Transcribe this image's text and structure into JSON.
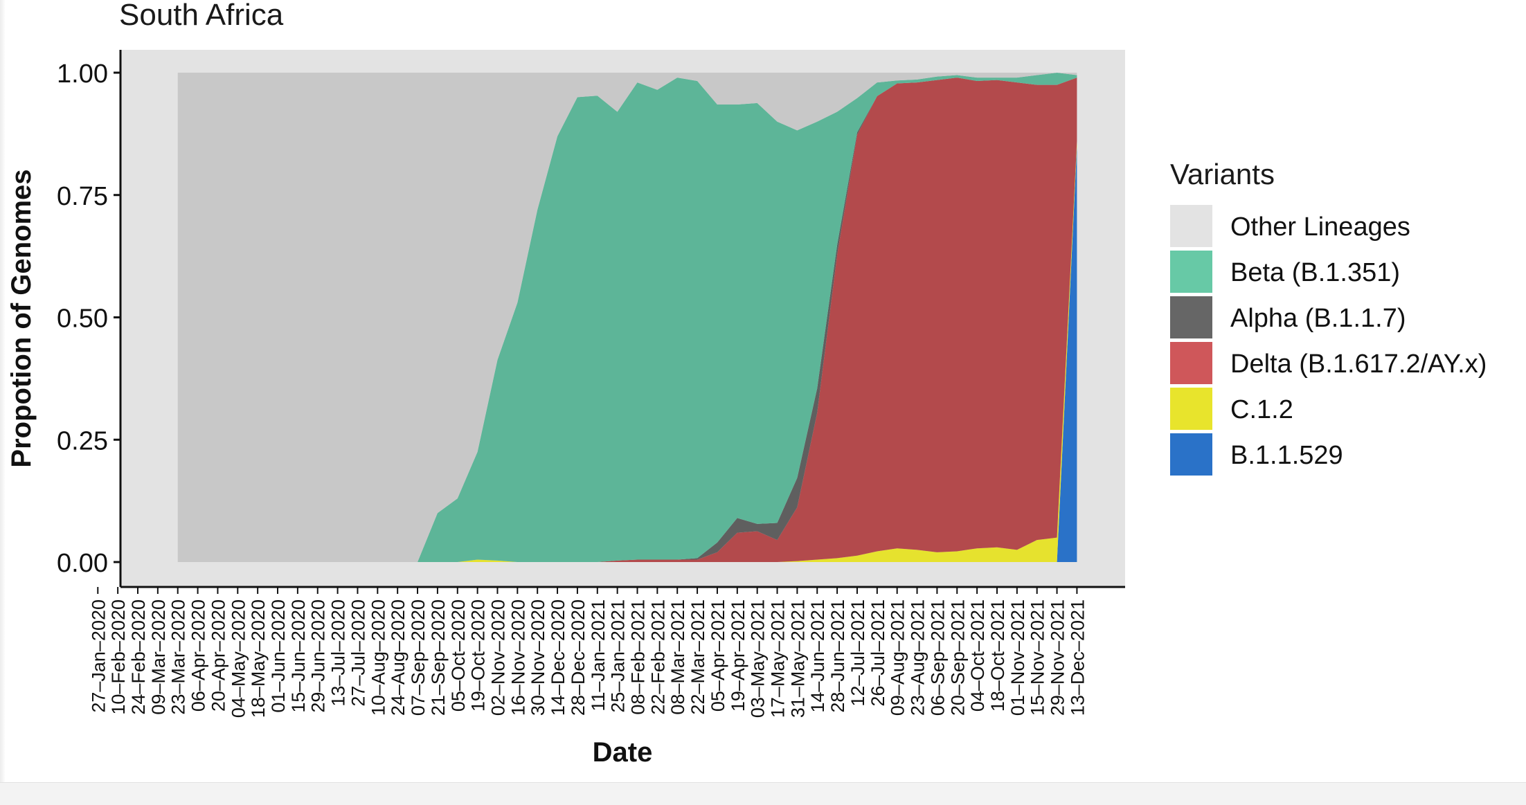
{
  "chart_data": {
    "type": "area",
    "title": "South Africa",
    "xlabel": "Date",
    "ylabel": "Propotion of Genomes",
    "ylim": [
      0,
      1
    ],
    "yticks": [
      "0.00",
      "0.25",
      "0.50",
      "0.75",
      "1.00"
    ],
    "grid": false,
    "legend_position": "right",
    "legend_title": "Variants",
    "x_ticks": [
      "27–Jan–2020",
      "10–Feb–2020",
      "24–Feb–2020",
      "09–Mar–2020",
      "23–Mar–2020",
      "06–Apr–2020",
      "20–Apr–2020",
      "04–May–2020",
      "18–May–2020",
      "01–Jun–2020",
      "15–Jun–2020",
      "29–Jun–2020",
      "13–Jul–2020",
      "27–Jul–2020",
      "10–Aug–2020",
      "24–Aug–2020",
      "07–Sep–2020",
      "21–Sep–2020",
      "05–Oct–2020",
      "19–Oct–2020",
      "02–Nov–2020",
      "16–Nov–2020",
      "30–Nov–2020",
      "14–Dec–2020",
      "28–Dec–2020",
      "11–Jan–2021",
      "25–Jan–2021",
      "08–Feb–2021",
      "22–Feb–2021",
      "08–Mar–2021",
      "22–Mar–2021",
      "05–Apr–2021",
      "19–Apr–2021",
      "03–May–2021",
      "17–May–2021",
      "31–May–2021",
      "14–Jun–2021",
      "28–Jun–2021",
      "12–Jul–2021",
      "26–Jul–2021",
      "09–Aug–2021",
      "23–Aug–2021",
      "06–Sep–2021",
      "20–Sep–2021",
      "04–Oct–2021",
      "18–Oct–2021",
      "01–Nov–2021",
      "15–Nov–2021",
      "29–Nov–2021",
      "13–Dec–2021"
    ],
    "x": [
      "2020-02-24",
      "2020-03-09",
      "2020-03-23",
      "2020-04-06",
      "2020-04-20",
      "2020-05-04",
      "2020-05-18",
      "2020-06-01",
      "2020-06-15",
      "2020-06-29",
      "2020-07-13",
      "2020-07-27",
      "2020-08-10",
      "2020-08-24",
      "2020-09-07",
      "2020-09-21",
      "2020-10-05",
      "2020-10-19",
      "2020-11-02",
      "2020-11-16",
      "2020-11-30",
      "2020-12-14",
      "2020-12-28",
      "2021-01-11",
      "2021-01-25",
      "2021-02-08",
      "2021-02-22",
      "2021-03-08",
      "2021-03-22",
      "2021-04-05",
      "2021-04-19",
      "2021-05-03",
      "2021-05-17",
      "2021-05-31",
      "2021-06-14",
      "2021-06-28",
      "2021-07-12",
      "2021-07-26",
      "2021-08-09",
      "2021-08-23",
      "2021-09-06",
      "2021-09-20",
      "2021-10-04",
      "2021-10-18",
      "2021-11-01",
      "2021-11-15"
    ],
    "series": [
      {
        "name": "B.1.1.529",
        "color": "#2a72c8",
        "values": [
          0,
          0,
          0,
          0,
          0,
          0,
          0,
          0,
          0,
          0,
          0,
          0,
          0,
          0,
          0,
          0,
          0,
          0,
          0,
          0,
          0,
          0,
          0,
          0,
          0,
          0,
          0,
          0,
          0,
          0,
          0,
          0,
          0,
          0,
          0,
          0,
          0,
          0,
          0,
          0,
          0,
          0,
          0,
          0,
          0,
          0.85
        ]
      },
      {
        "name": "C.1.2",
        "color": "#e6e22e",
        "values": [
          0,
          0,
          0,
          0,
          0,
          0,
          0,
          0,
          0,
          0,
          0,
          0,
          0,
          0,
          0,
          0.005,
          0.003,
          0,
          0,
          0,
          0,
          0,
          0,
          0,
          0,
          0,
          0,
          0,
          0,
          0,
          0,
          0.002,
          0.005,
          0.008,
          0.013,
          0.022,
          0.028,
          0.025,
          0.02,
          0.022,
          0.028,
          0.03,
          0.025,
          0.045,
          0.05,
          0.01
        ]
      },
      {
        "name": "Delta (B.1.617.2/AY.x)",
        "color": "#b34a4c",
        "values": [
          0,
          0,
          0,
          0,
          0,
          0,
          0,
          0,
          0,
          0,
          0,
          0,
          0,
          0,
          0,
          0,
          0,
          0,
          0,
          0,
          0,
          0,
          0.003,
          0.005,
          0.005,
          0.005,
          0.005,
          0.02,
          0.06,
          0.063,
          0.045,
          0.11,
          0.3,
          0.62,
          0.86,
          0.93,
          0.95,
          0.955,
          0.965,
          0.968,
          0.955,
          0.955,
          0.955,
          0.93,
          0.925,
          0.13
        ]
      },
      {
        "name": "Alpha (B.1.1.7)",
        "color": "#5f5f5f",
        "values": [
          0,
          0,
          0,
          0,
          0,
          0,
          0,
          0,
          0,
          0,
          0,
          0,
          0,
          0,
          0,
          0,
          0,
          0,
          0,
          0,
          0,
          0,
          0,
          0,
          0,
          0,
          0.003,
          0.02,
          0.03,
          0.015,
          0.035,
          0.06,
          0.05,
          0.02,
          0.005,
          0,
          0,
          0,
          0,
          0,
          0,
          0,
          0,
          0,
          0,
          0
        ]
      },
      {
        "name": "Beta (B.1.351)",
        "color": "#5db598",
        "values": [
          0,
          0,
          0,
          0,
          0,
          0,
          0,
          0,
          0,
          0,
          0,
          0,
          0,
          0.1,
          0.13,
          0.22,
          0.41,
          0.53,
          0.72,
          0.87,
          0.95,
          0.953,
          0.917,
          0.975,
          0.96,
          0.985,
          0.975,
          0.895,
          0.845,
          0.86,
          0.82,
          0.71,
          0.545,
          0.272,
          0.07,
          0.028,
          0.006,
          0.006,
          0.007,
          0.005,
          0.007,
          0.005,
          0.01,
          0.02,
          0.025,
          0.005
        ]
      },
      {
        "name": "Other Lineages",
        "color": "#c8c8c8",
        "values": [
          1,
          1,
          1,
          1,
          1,
          1,
          1,
          1,
          1,
          1,
          1,
          1,
          1,
          0.9,
          0.87,
          0.775,
          0.587,
          0.47,
          0.28,
          0.13,
          0.05,
          0.047,
          0.08,
          0.02,
          0.035,
          0.01,
          0.017,
          0.065,
          0.065,
          0.062,
          0.1,
          0.118,
          0.1,
          0.08,
          0.052,
          0.02,
          0.016,
          0.014,
          0.008,
          0.005,
          0.01,
          0.01,
          0.01,
          0.005,
          0,
          0.005
        ]
      }
    ],
    "legend_order": [
      "Other Lineages",
      "Beta (B.1.351)",
      "Alpha (B.1.1.7)",
      "Delta (B.1.617.2/AY.x)",
      "C.1.2",
      "B.1.1.529"
    ],
    "legend_colors": {
      "Other Lineages": "#e3e3e3",
      "Beta (B.1.351)": "#67c9a6",
      "Alpha (B.1.1.7)": "#666666",
      "Delta (B.1.617.2/AY.x)": "#cf575a",
      "C.1.2": "#e8e42c",
      "B.1.1.529": "#2a72c8"
    }
  }
}
